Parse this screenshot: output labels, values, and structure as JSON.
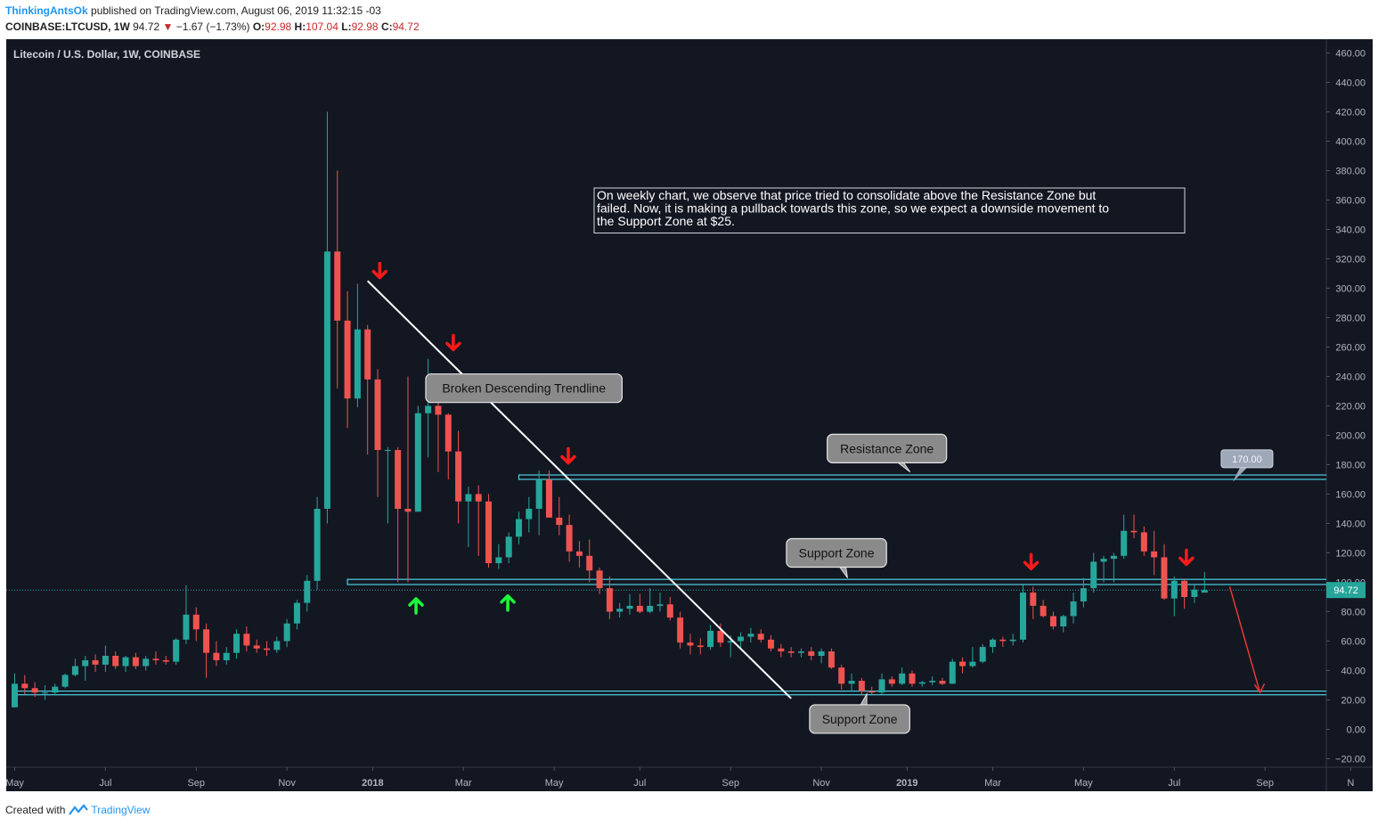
{
  "header": {
    "author": "ThinkingAntsOk",
    "published_text": "published on TradingView.com, August 06, 2019 11:32:15 -03",
    "symbol": "COINBASE:LTCUSD, 1W",
    "last": "94.72",
    "change_arrow": "▼",
    "change": "−1.67 (−1.73%)",
    "o_label": "O:",
    "o_val": "92.98",
    "h_label": "H:",
    "h_val": "107.04",
    "l_label": "L:",
    "l_val": "92.98",
    "c_label": "C:",
    "c_val": "94.72"
  },
  "footer": {
    "created": "Created with",
    "brand": "TradingView"
  },
  "colors": {
    "bg": "#131722",
    "up": "#26a69a",
    "down": "#ef5350",
    "zone": "#4dd0e1",
    "arrow_down": "#ff1a1a",
    "arrow_up": "#1aff3a",
    "axis_text": "#b2b5be"
  },
  "chart_data": {
    "type": "candlestick",
    "title": "Litecoin / U.S. Dollar, 1W, COINBASE",
    "ylim": [
      -25,
      470
    ],
    "y_ticks": [
      "460.00",
      "440.00",
      "420.00",
      "400.00",
      "380.00",
      "360.00",
      "340.00",
      "320.00",
      "300.00",
      "280.00",
      "260.00",
      "240.00",
      "220.00",
      "200.00",
      "180.00",
      "160.00",
      "140.00",
      "120.00",
      "100.00",
      "80.00",
      "60.00",
      "40.00",
      "20.00",
      "0.00",
      "−20.00"
    ],
    "y_tick_values": [
      460,
      440,
      420,
      400,
      380,
      360,
      340,
      320,
      300,
      280,
      260,
      240,
      220,
      200,
      180,
      160,
      140,
      120,
      100,
      80,
      60,
      40,
      20,
      0,
      -20
    ],
    "x_ticks": [
      {
        "label": "May",
        "week": 0
      },
      {
        "label": "Jul",
        "week": 9
      },
      {
        "label": "Sep",
        "week": 18
      },
      {
        "label": "Nov",
        "week": 27
      },
      {
        "label": "2018",
        "week": 35.5
      },
      {
        "label": "Mar",
        "week": 44.5
      },
      {
        "label": "May",
        "week": 53.5
      },
      {
        "label": "Jul",
        "week": 62
      },
      {
        "label": "Sep",
        "week": 71
      },
      {
        "label": "Nov",
        "week": 80
      },
      {
        "label": "2019",
        "week": 88.5
      },
      {
        "label": "Mar",
        "week": 97
      },
      {
        "label": "May",
        "week": 106
      },
      {
        "label": "Jul",
        "week": 115
      },
      {
        "label": "Sep",
        "week": 124
      },
      {
        "label": "N",
        "week": 132.5
      }
    ],
    "candles": [
      {
        "o": 15,
        "h": 38,
        "l": 15,
        "c": 31
      },
      {
        "o": 31,
        "h": 37,
        "l": 24,
        "c": 28
      },
      {
        "o": 28,
        "h": 32,
        "l": 22,
        "c": 25
      },
      {
        "o": 25,
        "h": 30,
        "l": 20,
        "c": 25
      },
      {
        "o": 25,
        "h": 31,
        "l": 23,
        "c": 29
      },
      {
        "o": 29,
        "h": 38,
        "l": 28,
        "c": 37
      },
      {
        "o": 37,
        "h": 48,
        "l": 36,
        "c": 43
      },
      {
        "o": 43,
        "h": 50,
        "l": 33,
        "c": 47
      },
      {
        "o": 47,
        "h": 51,
        "l": 39,
        "c": 44
      },
      {
        "o": 44,
        "h": 57,
        "l": 39,
        "c": 50
      },
      {
        "o": 50,
        "h": 53,
        "l": 41,
        "c": 43
      },
      {
        "o": 43,
        "h": 50,
        "l": 39,
        "c": 49
      },
      {
        "o": 49,
        "h": 52,
        "l": 41,
        "c": 43
      },
      {
        "o": 43,
        "h": 50,
        "l": 40,
        "c": 48
      },
      {
        "o": 48,
        "h": 53,
        "l": 44,
        "c": 47
      },
      {
        "o": 47,
        "h": 50,
        "l": 44,
        "c": 46
      },
      {
        "o": 46,
        "h": 62,
        "l": 44,
        "c": 61
      },
      {
        "o": 61,
        "h": 98,
        "l": 58,
        "c": 78
      },
      {
        "o": 78,
        "h": 83,
        "l": 60,
        "c": 68
      },
      {
        "o": 68,
        "h": 72,
        "l": 35,
        "c": 52
      },
      {
        "o": 52,
        "h": 60,
        "l": 43,
        "c": 47
      },
      {
        "o": 47,
        "h": 56,
        "l": 44,
        "c": 52
      },
      {
        "o": 52,
        "h": 68,
        "l": 48,
        "c": 65
      },
      {
        "o": 65,
        "h": 70,
        "l": 53,
        "c": 57
      },
      {
        "o": 57,
        "h": 61,
        "l": 52,
        "c": 55
      },
      {
        "o": 55,
        "h": 60,
        "l": 50,
        "c": 54
      },
      {
        "o": 54,
        "h": 63,
        "l": 52,
        "c": 60
      },
      {
        "o": 60,
        "h": 75,
        "l": 56,
        "c": 72
      },
      {
        "o": 72,
        "h": 88,
        "l": 68,
        "c": 86
      },
      {
        "o": 86,
        "h": 105,
        "l": 80,
        "c": 101
      },
      {
        "o": 101,
        "h": 158,
        "l": 95,
        "c": 150
      },
      {
        "o": 150,
        "h": 420,
        "l": 140,
        "c": 325
      },
      {
        "o": 325,
        "h": 380,
        "l": 232,
        "c": 278
      },
      {
        "o": 278,
        "h": 298,
        "l": 205,
        "c": 225
      },
      {
        "o": 225,
        "h": 303,
        "l": 219,
        "c": 272
      },
      {
        "o": 272,
        "h": 275,
        "l": 187,
        "c": 238
      },
      {
        "o": 238,
        "h": 245,
        "l": 158,
        "c": 190
      },
      {
        "o": 190,
        "h": 192,
        "l": 140,
        "c": 190
      },
      {
        "o": 190,
        "h": 192,
        "l": 100,
        "c": 150
      },
      {
        "o": 150,
        "h": 240,
        "l": 100,
        "c": 148
      },
      {
        "o": 148,
        "h": 220,
        "l": 150,
        "c": 215
      },
      {
        "o": 215,
        "h": 252,
        "l": 185,
        "c": 220
      },
      {
        "o": 220,
        "h": 232,
        "l": 175,
        "c": 214
      },
      {
        "o": 214,
        "h": 215,
        "l": 170,
        "c": 189
      },
      {
        "o": 189,
        "h": 203,
        "l": 140,
        "c": 155
      },
      {
        "o": 155,
        "h": 165,
        "l": 124,
        "c": 160
      },
      {
        "o": 160,
        "h": 166,
        "l": 118,
        "c": 155
      },
      {
        "o": 155,
        "h": 160,
        "l": 110,
        "c": 113
      },
      {
        "o": 113,
        "h": 126,
        "l": 109,
        "c": 117
      },
      {
        "o": 117,
        "h": 134,
        "l": 113,
        "c": 131
      },
      {
        "o": 131,
        "h": 148,
        "l": 126,
        "c": 143
      },
      {
        "o": 143,
        "h": 158,
        "l": 134,
        "c": 150
      },
      {
        "o": 150,
        "h": 176,
        "l": 132,
        "c": 170
      },
      {
        "o": 170,
        "h": 176,
        "l": 148,
        "c": 144
      },
      {
        "o": 144,
        "h": 158,
        "l": 132,
        "c": 139
      },
      {
        "o": 139,
        "h": 146,
        "l": 114,
        "c": 121
      },
      {
        "o": 121,
        "h": 128,
        "l": 110,
        "c": 118
      },
      {
        "o": 118,
        "h": 129,
        "l": 100,
        "c": 108
      },
      {
        "o": 108,
        "h": 110,
        "l": 92,
        "c": 96
      },
      {
        "o": 96,
        "h": 104,
        "l": 75,
        "c": 80
      },
      {
        "o": 80,
        "h": 86,
        "l": 76,
        "c": 82
      },
      {
        "o": 82,
        "h": 92,
        "l": 78,
        "c": 84
      },
      {
        "o": 84,
        "h": 92,
        "l": 79,
        "c": 80
      },
      {
        "o": 80,
        "h": 96,
        "l": 79,
        "c": 84
      },
      {
        "o": 84,
        "h": 93,
        "l": 80,
        "c": 85
      },
      {
        "o": 85,
        "h": 90,
        "l": 74,
        "c": 76
      },
      {
        "o": 76,
        "h": 80,
        "l": 55,
        "c": 59
      },
      {
        "o": 59,
        "h": 65,
        "l": 51,
        "c": 57
      },
      {
        "o": 57,
        "h": 62,
        "l": 51,
        "c": 56
      },
      {
        "o": 56,
        "h": 71,
        "l": 54,
        "c": 67
      },
      {
        "o": 67,
        "h": 72,
        "l": 56,
        "c": 59
      },
      {
        "o": 59,
        "h": 64,
        "l": 49,
        "c": 60
      },
      {
        "o": 60,
        "h": 66,
        "l": 55,
        "c": 63
      },
      {
        "o": 63,
        "h": 69,
        "l": 59,
        "c": 65
      },
      {
        "o": 65,
        "h": 68,
        "l": 59,
        "c": 61
      },
      {
        "o": 61,
        "h": 64,
        "l": 53,
        "c": 55
      },
      {
        "o": 55,
        "h": 58,
        "l": 49,
        "c": 53
      },
      {
        "o": 53,
        "h": 56,
        "l": 49,
        "c": 52
      },
      {
        "o": 52,
        "h": 55,
        "l": 49,
        "c": 53
      },
      {
        "o": 53,
        "h": 56,
        "l": 47,
        "c": 50
      },
      {
        "o": 50,
        "h": 55,
        "l": 45,
        "c": 53
      },
      {
        "o": 53,
        "h": 55,
        "l": 41,
        "c": 42
      },
      {
        "o": 42,
        "h": 44,
        "l": 27,
        "c": 31
      },
      {
        "o": 31,
        "h": 38,
        "l": 26,
        "c": 33
      },
      {
        "o": 33,
        "h": 35,
        "l": 23,
        "c": 26
      },
      {
        "o": 26,
        "h": 29,
        "l": 23,
        "c": 25
      },
      {
        "o": 25,
        "h": 38,
        "l": 24,
        "c": 34
      },
      {
        "o": 34,
        "h": 36,
        "l": 29,
        "c": 31
      },
      {
        "o": 31,
        "h": 42,
        "l": 30,
        "c": 38
      },
      {
        "o": 38,
        "h": 40,
        "l": 29,
        "c": 31
      },
      {
        "o": 31,
        "h": 33,
        "l": 29,
        "c": 32
      },
      {
        "o": 32,
        "h": 36,
        "l": 30,
        "c": 33
      },
      {
        "o": 33,
        "h": 35,
        "l": 30,
        "c": 31
      },
      {
        "o": 31,
        "h": 48,
        "l": 31,
        "c": 46
      },
      {
        "o": 46,
        "h": 49,
        "l": 38,
        "c": 43
      },
      {
        "o": 43,
        "h": 56,
        "l": 42,
        "c": 46
      },
      {
        "o": 46,
        "h": 58,
        "l": 45,
        "c": 56
      },
      {
        "o": 56,
        "h": 62,
        "l": 52,
        "c": 61
      },
      {
        "o": 61,
        "h": 63,
        "l": 56,
        "c": 60
      },
      {
        "o": 60,
        "h": 65,
        "l": 57,
        "c": 61
      },
      {
        "o": 61,
        "h": 99,
        "l": 59,
        "c": 93
      },
      {
        "o": 93,
        "h": 97,
        "l": 75,
        "c": 84
      },
      {
        "o": 84,
        "h": 88,
        "l": 76,
        "c": 77
      },
      {
        "o": 77,
        "h": 80,
        "l": 68,
        "c": 70
      },
      {
        "o": 70,
        "h": 78,
        "l": 66,
        "c": 77
      },
      {
        "o": 77,
        "h": 93,
        "l": 72,
        "c": 87
      },
      {
        "o": 87,
        "h": 103,
        "l": 83,
        "c": 96
      },
      {
        "o": 96,
        "h": 120,
        "l": 93,
        "c": 114
      },
      {
        "o": 114,
        "h": 118,
        "l": 100,
        "c": 116
      },
      {
        "o": 116,
        "h": 120,
        "l": 100,
        "c": 118
      },
      {
        "o": 118,
        "h": 146,
        "l": 116,
        "c": 135
      },
      {
        "o": 135,
        "h": 146,
        "l": 130,
        "c": 134
      },
      {
        "o": 134,
        "h": 138,
        "l": 118,
        "c": 121
      },
      {
        "o": 121,
        "h": 135,
        "l": 105,
        "c": 117
      },
      {
        "o": 117,
        "h": 126,
        "l": 88,
        "c": 89
      },
      {
        "o": 89,
        "h": 104,
        "l": 77,
        "c": 101
      },
      {
        "o": 101,
        "h": 102,
        "l": 82,
        "c": 90
      },
      {
        "o": 90,
        "h": 99,
        "l": 86,
        "c": 95
      },
      {
        "o": 92.98,
        "h": 107.04,
        "l": 92.98,
        "c": 94.72
      }
    ],
    "last_price": 94.72,
    "last_price_label": "94.72",
    "zones": [
      {
        "name": "Resistance Zone",
        "low": 170,
        "high": 173,
        "from_week": 50,
        "to_week": 131
      },
      {
        "name": "Support Zone",
        "low": 98.5,
        "high": 102,
        "from_week": 33,
        "to_week": 131
      },
      {
        "name": "Support Zone",
        "low": 23.5,
        "high": 26,
        "from_week": 0,
        "to_week": 131
      }
    ],
    "trendline": {
      "from": {
        "week": 35,
        "price": 305
      },
      "to": {
        "week": 77,
        "price": 21
      }
    },
    "down_arrows": [
      {
        "week": 36.2,
        "price": 306
      },
      {
        "week": 43.5,
        "price": 257
      },
      {
        "week": 54.9,
        "price": 180
      },
      {
        "week": 100.8,
        "price": 108
      },
      {
        "week": 116.2,
        "price": 111
      }
    ],
    "up_arrows": [
      {
        "week": 39.8,
        "price": 90
      },
      {
        "week": 48.9,
        "price": 92
      }
    ],
    "projection": {
      "from": {
        "week": 120.5,
        "price": 97
      },
      "to": {
        "week": 123.5,
        "price": 25
      }
    },
    "price_label": {
      "text": "170.00",
      "week": 122.3,
      "price": 184
    },
    "callouts": [
      {
        "text": "Broken Descending Trendline",
        "week": 50.5,
        "price": 232,
        "ptr_week": 48,
        "ptr_price": 222
      },
      {
        "text": "Resistance Zone",
        "week": 86.5,
        "price": 191,
        "ptr_week": 88.8,
        "ptr_price": 175
      },
      {
        "text": "Support Zone",
        "week": 81.5,
        "price": 120,
        "ptr_week": 82.6,
        "ptr_price": 103
      },
      {
        "text": "Support Zone",
        "week": 83.8,
        "price": 7,
        "ptr_week": 84.5,
        "ptr_price": 24
      }
    ],
    "annotation": "On weekly chart, we observe that price tried to consolidate above the Resistance Zone but failed. Now, it is making a pullback towards this zone, so we expect a downside movement to the Support Zone at $25."
  }
}
